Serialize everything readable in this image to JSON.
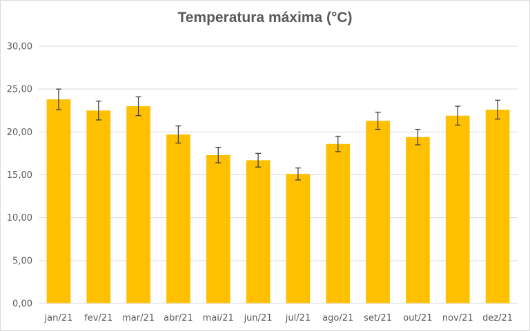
{
  "chart_data": {
    "type": "bar",
    "title": "Temperatura máxima (°C)",
    "xlabel": "",
    "ylabel": "",
    "categories": [
      "jan/21",
      "fev/21",
      "mar/21",
      "abr/21",
      "mai/21",
      "jun/21",
      "jul/21",
      "ago/21",
      "set/21",
      "out/21",
      "nov/21",
      "dez/21"
    ],
    "series": [
      {
        "values": [
          23.8,
          22.5,
          23.0,
          19.7,
          17.3,
          16.7,
          15.1,
          18.6,
          21.3,
          19.4,
          21.9,
          22.6
        ],
        "error": [
          1.2,
          1.1,
          1.1,
          1.0,
          0.9,
          0.8,
          0.7,
          0.9,
          1.0,
          0.9,
          1.1,
          1.1
        ],
        "color": "#ffc000"
      }
    ],
    "ylim": [
      0,
      30
    ],
    "yticks": [
      0,
      5,
      10,
      15,
      20,
      25,
      30
    ],
    "ytick_labels": [
      "0,00",
      "5,00",
      "10,00",
      "15,00",
      "20,00",
      "25,00",
      "30,00"
    ],
    "grid": true,
    "gridline_color": "#d9d9d9",
    "error_bar_color": "#404040",
    "legend": "none"
  }
}
